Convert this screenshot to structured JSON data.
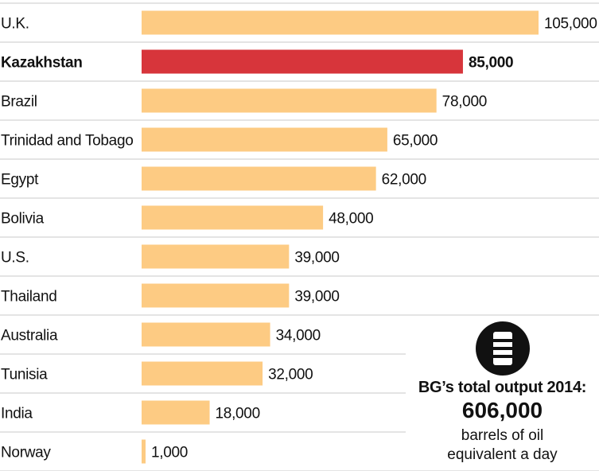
{
  "chart_data": {
    "type": "bar",
    "orientation": "horizontal",
    "categories": [
      "U.K.",
      "Kazakhstan",
      "Brazil",
      "Trinidad and Tobago",
      "Egypt",
      "Bolivia",
      "U.S.",
      "Thailand",
      "Australia",
      "Tunisia",
      "India",
      "Norway"
    ],
    "values": [
      105000,
      85000,
      78000,
      65000,
      62000,
      48000,
      39000,
      39000,
      34000,
      32000,
      18000,
      1000
    ],
    "value_labels": [
      "105,000",
      "85,000",
      "78,000",
      "65,000",
      "62,000",
      "48,000",
      "39,000",
      "39,000",
      "34,000",
      "32,000",
      "18,000",
      "1,000"
    ],
    "highlight": "Kazakhstan",
    "xlim": [
      0,
      105000
    ],
    "grid": false,
    "colors": {
      "bar": "#fdcb83",
      "highlight": "#d7353b",
      "separator": "#c8c8c8"
    }
  },
  "callout": {
    "icon": "oil-barrel-icon",
    "title": "BG’s total output 2014:",
    "total": "606,000",
    "description_line1": "barrels of oil",
    "description_line2": "equivalent a day"
  }
}
